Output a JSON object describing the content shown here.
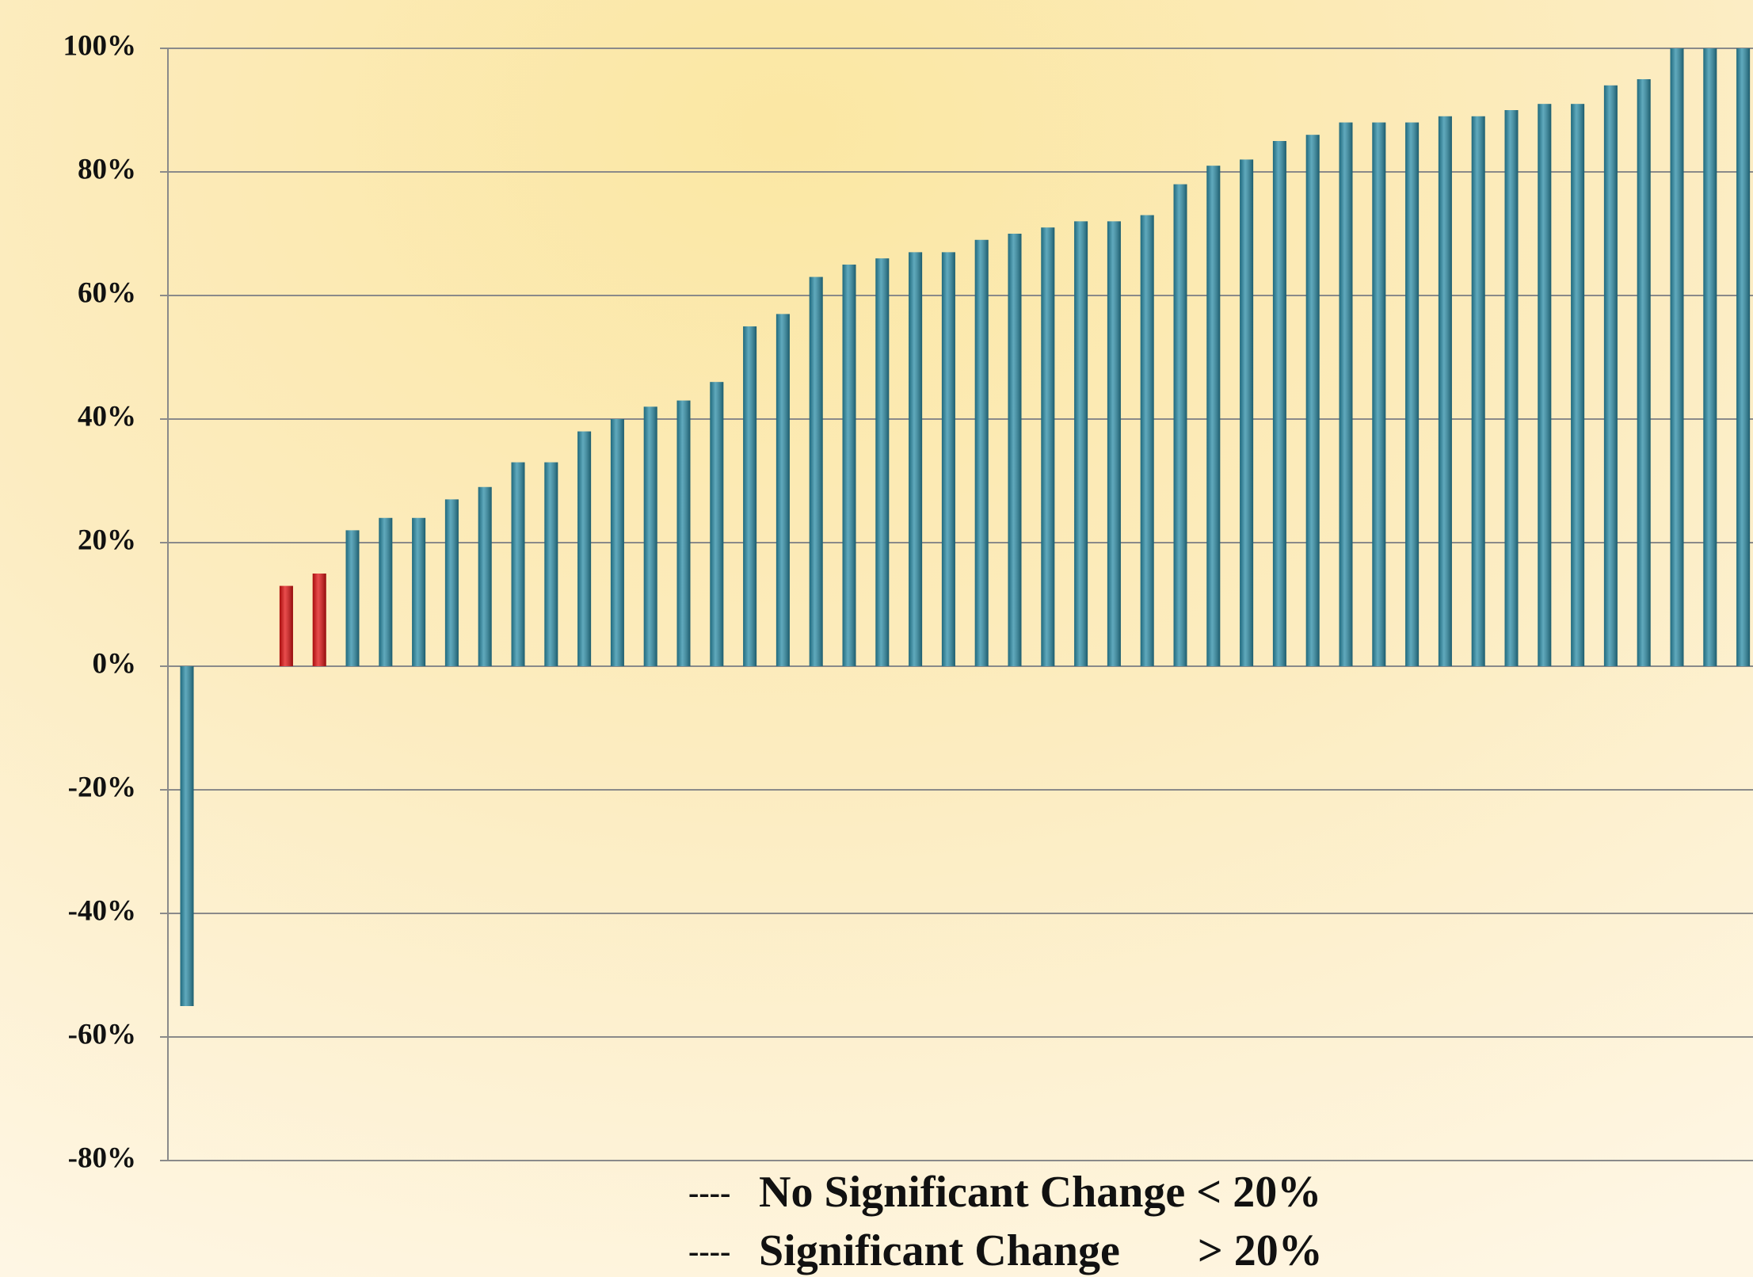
{
  "chart_data": {
    "type": "bar",
    "categories": [
      null,
      null,
      null,
      null,
      null,
      null,
      null,
      null,
      null,
      null,
      null,
      null,
      null,
      null,
      null,
      null,
      null,
      null,
      null,
      null,
      null,
      null,
      null,
      null,
      null,
      null,
      null,
      null,
      null,
      null,
      null,
      null,
      null,
      null,
      null,
      null,
      null,
      null,
      null,
      null,
      null,
      null,
      null,
      null,
      null,
      null,
      null,
      null
    ],
    "values": [
      -55,
      0,
      0,
      13,
      15,
      22,
      24,
      24,
      27,
      29,
      33,
      33,
      38,
      40,
      42,
      43,
      46,
      55,
      57,
      63,
      65,
      66,
      67,
      67,
      69,
      70,
      71,
      72,
      72,
      73,
      78,
      81,
      82,
      85,
      86,
      88,
      88,
      88,
      89,
      89,
      90,
      91,
      91,
      94,
      95,
      100,
      100,
      100
    ],
    "colors": [
      "#2a8ca6",
      "#2a8ca6",
      "#2a8ca6",
      "#e01010",
      "#e01010",
      "#2a8ca6",
      "#2a8ca6",
      "#2a8ca6",
      "#2a8ca6",
      "#2a8ca6",
      "#2a8ca6",
      "#2a8ca6",
      "#2a8ca6",
      "#2a8ca6",
      "#2a8ca6",
      "#2a8ca6",
      "#2a8ca6",
      "#2a8ca6",
      "#2a8ca6",
      "#2a8ca6",
      "#2a8ca6",
      "#2a8ca6",
      "#2a8ca6",
      "#2a8ca6",
      "#2a8ca6",
      "#2a8ca6",
      "#2a8ca6",
      "#2a8ca6",
      "#2a8ca6",
      "#2a8ca6",
      "#2a8ca6",
      "#2a8ca6",
      "#2a8ca6",
      "#2a8ca6",
      "#2a8ca6",
      "#2a8ca6",
      "#2a8ca6",
      "#2a8ca6",
      "#2a8ca6",
      "#2a8ca6",
      "#2a8ca6",
      "#2a8ca6",
      "#2a8ca6",
      "#2a8ca6",
      "#2a8ca6",
      "#2a8ca6",
      "#2a8ca6",
      "#2a8ca6"
    ],
    "ylim": [
      -80,
      100
    ],
    "yticks": [
      {
        "value": -80,
        "label": "-80%"
      },
      {
        "value": -60,
        "label": "-60%"
      },
      {
        "value": -40,
        "label": "-40%"
      },
      {
        "value": -20,
        "label": "-20%"
      },
      {
        "value": 0,
        "label": "0%"
      },
      {
        "value": 20,
        "label": "20%"
      },
      {
        "value": 40,
        "label": "40%"
      },
      {
        "value": 60,
        "label": "60%"
      },
      {
        "value": 80,
        "label": "80%"
      },
      {
        "value": 100,
        "label": "100%"
      }
    ],
    "grid": true,
    "legend": [
      {
        "marker": "----",
        "color": "#e01010",
        "label": "No Significant Change < 20%"
      },
      {
        "marker": "----",
        "color": "#000000",
        "label": "Significant Change       > 20%"
      }
    ]
  }
}
